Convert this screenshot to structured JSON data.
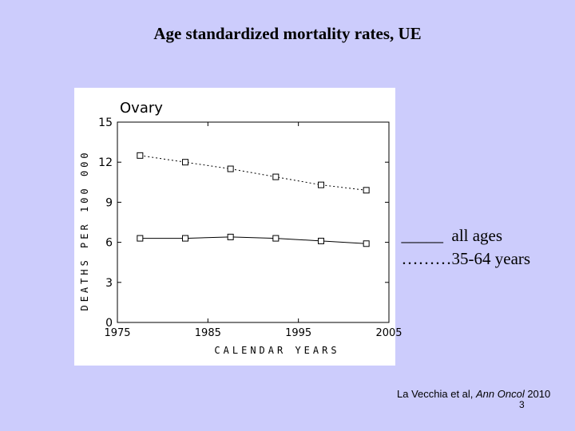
{
  "slide": {
    "title": "Age standardized mortality rates, UE",
    "page_number": "3"
  },
  "legend": {
    "all_ages_marker": "_____",
    "all_ages_label": "all ages",
    "age_35_64_marker": "………",
    "age_35_64_label": "35-64 years"
  },
  "citation": {
    "authors": "La Vecchia et al, ",
    "journal": "Ann Oncol",
    "year": " 2010"
  },
  "chart_data": {
    "type": "line",
    "title": "Ovary",
    "xlabel": "CALENDAR YEARS",
    "ylabel": "DEATHS PER 100 000",
    "xlim": [
      1975,
      2005
    ],
    "ylim": [
      0,
      15
    ],
    "xticks": [
      1975,
      1985,
      1995,
      2005
    ],
    "yticks": [
      0,
      3,
      6,
      9,
      12,
      15
    ],
    "grid": false,
    "x": [
      1977.5,
      1982.5,
      1987.5,
      1992.5,
      1997.5,
      2002.5
    ],
    "series": [
      {
        "name": "all ages",
        "style": "solid",
        "values": [
          6.3,
          6.3,
          6.4,
          6.3,
          6.1,
          5.9
        ]
      },
      {
        "name": "35-64 years",
        "style": "dotted",
        "values": [
          12.5,
          12.0,
          11.5,
          10.9,
          10.3,
          9.9
        ]
      }
    ],
    "colors": {
      "line": "#000000",
      "panel": "#ffffff",
      "background": "#ccccfc"
    }
  }
}
